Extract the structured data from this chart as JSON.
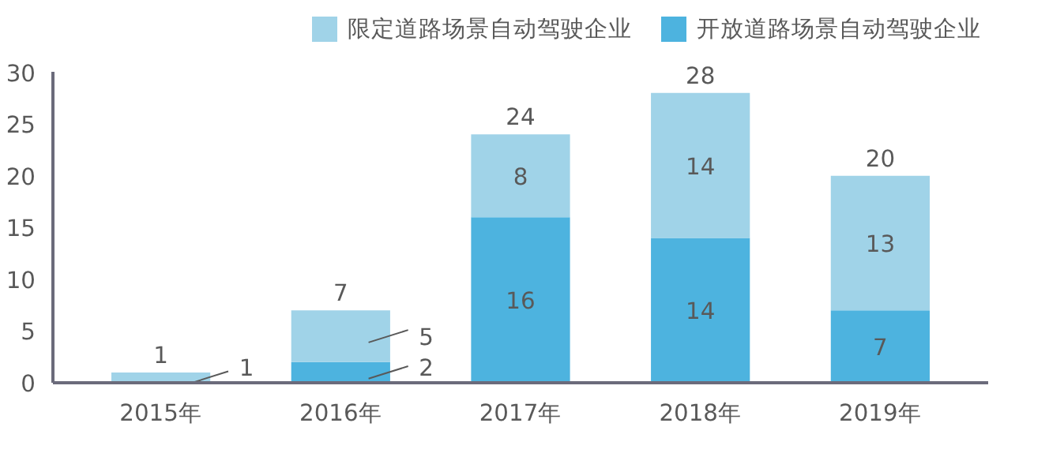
{
  "chart_data": {
    "type": "bar",
    "stacked": true,
    "categories": [
      "2015年",
      "2016年",
      "2017年",
      "2018年",
      "2019年"
    ],
    "series": [
      {
        "name": "开放道路场景自动驾驶企业",
        "color": "#4db3df",
        "values": [
          0,
          2,
          16,
          14,
          7
        ],
        "value_labels": [
          null,
          "2",
          "16",
          "14",
          "7"
        ]
      },
      {
        "name": "限定道路场景自动驾驶企业",
        "color": "#a0d3e8",
        "values": [
          1,
          5,
          8,
          14,
          13
        ],
        "value_labels": [
          "1",
          "5",
          "8",
          "14",
          "13"
        ]
      }
    ],
    "totals": [
      "1",
      "7",
      "24",
      "28",
      "20"
    ],
    "ylim": [
      0,
      30
    ],
    "yticks": [
      0,
      5,
      10,
      15,
      20,
      25,
      30
    ],
    "grid": false,
    "legend": "top right"
  }
}
